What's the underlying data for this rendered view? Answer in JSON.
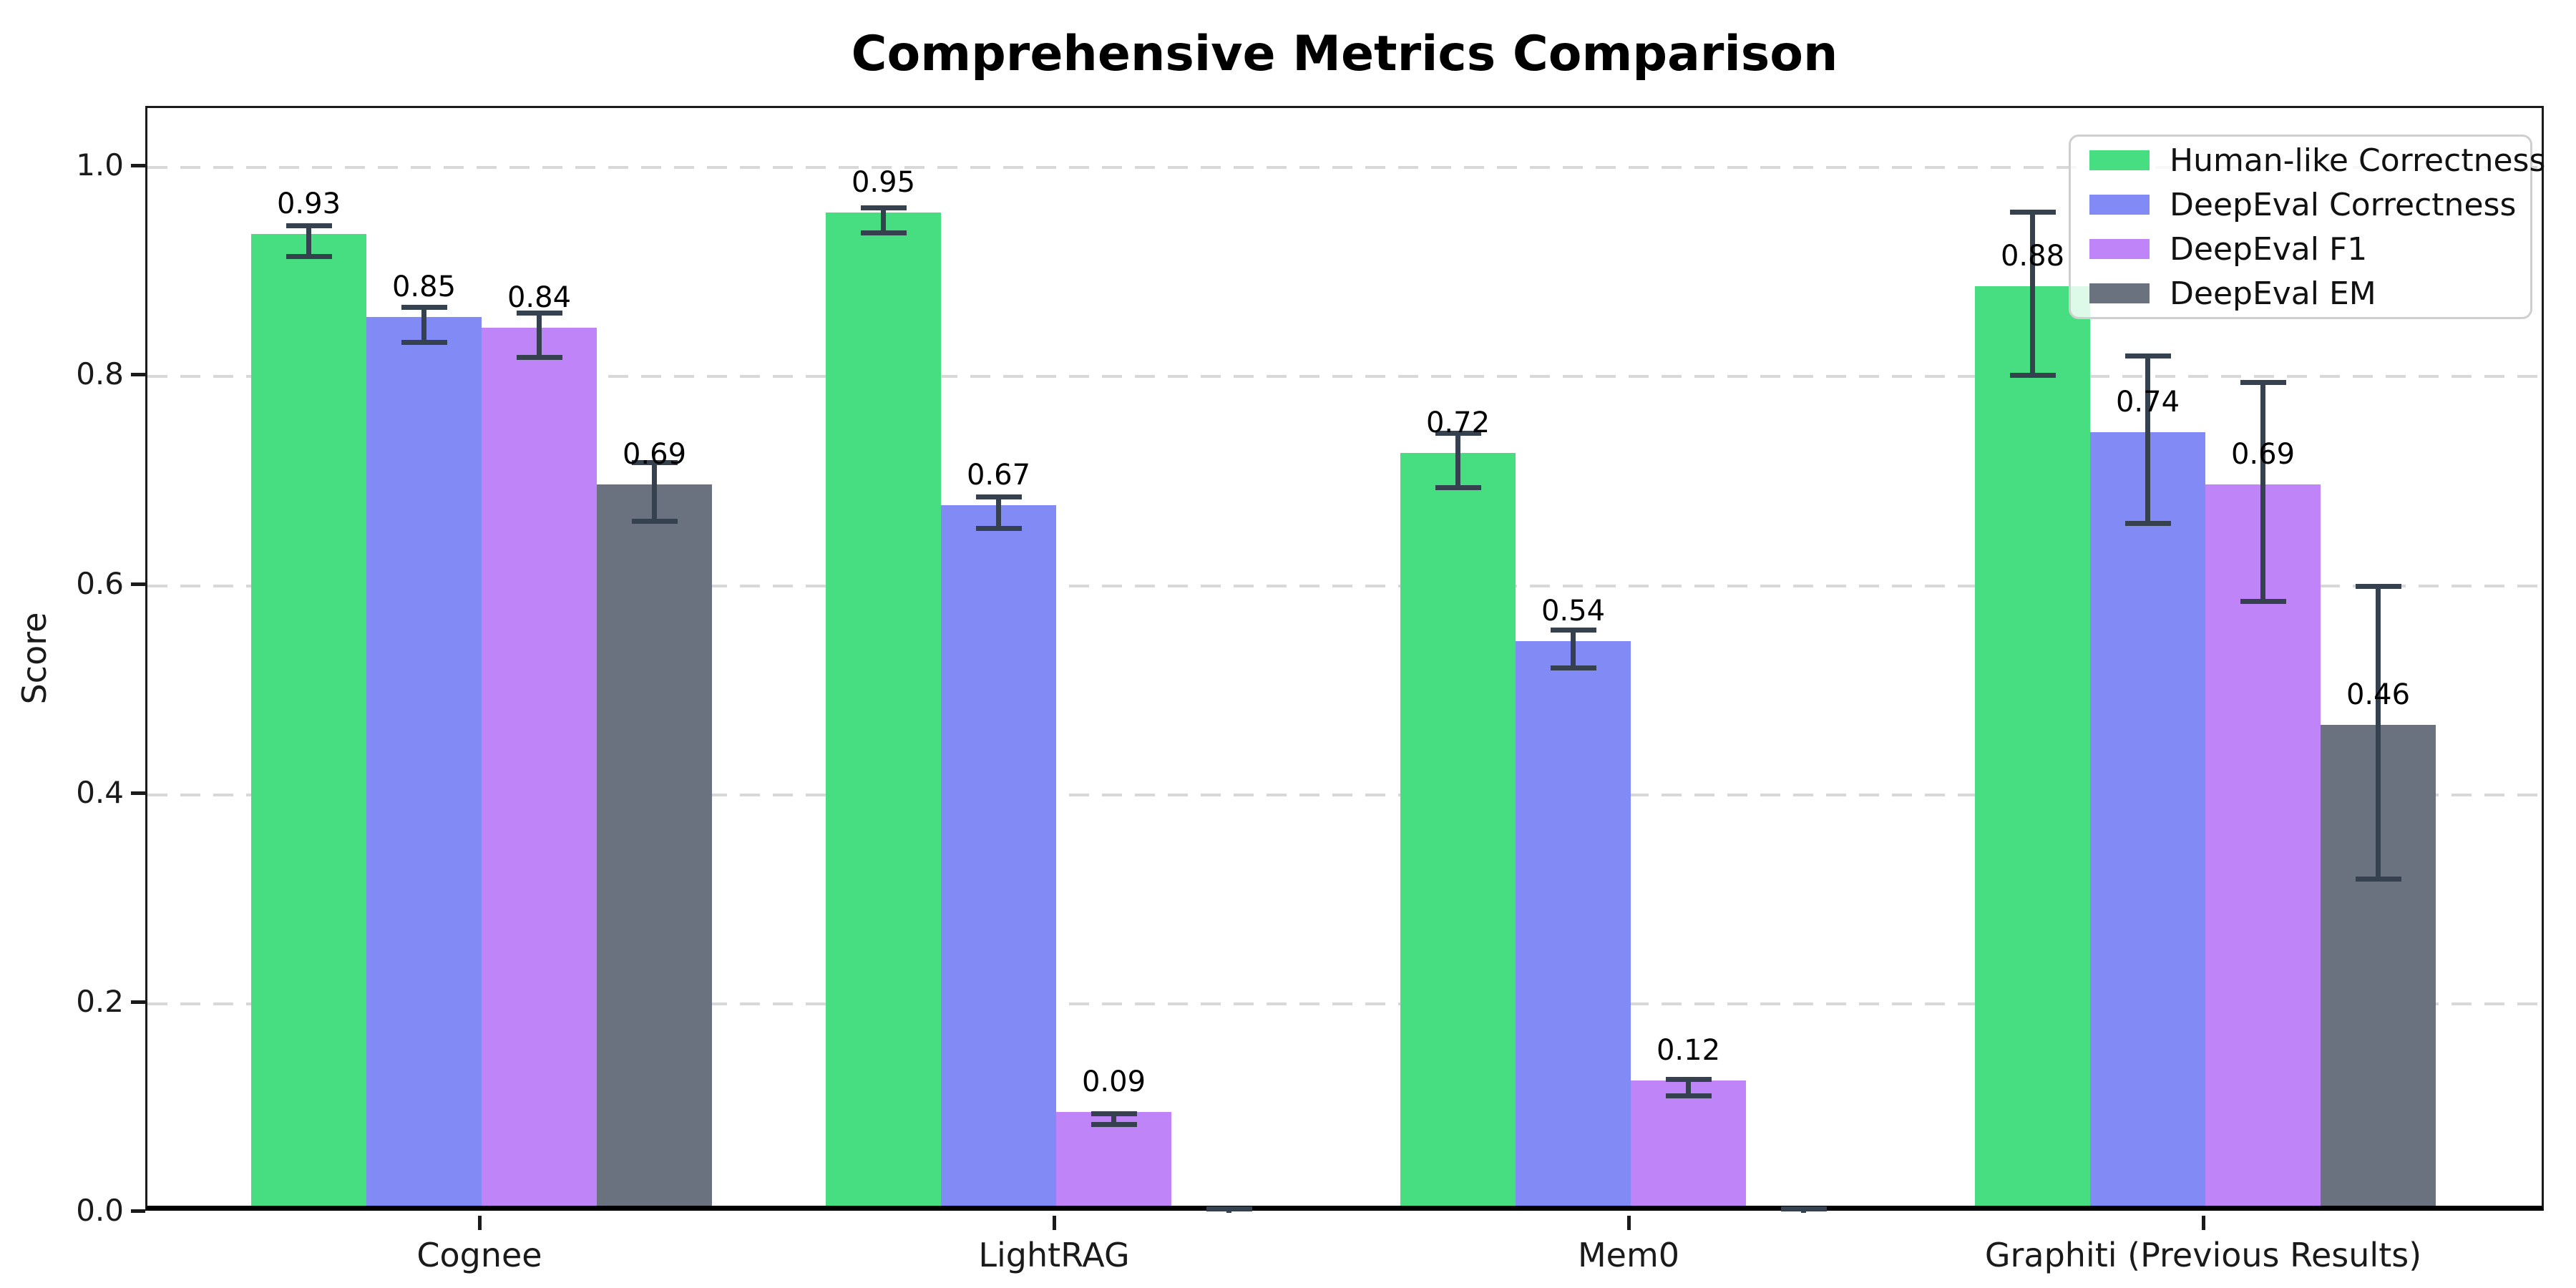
{
  "page": {
    "background": "#ffffff"
  },
  "chart_data": {
    "type": "bar",
    "title": "Comprehensive Metrics Comparison",
    "ylabel": "Score",
    "xlabel": "",
    "categories": [
      "Cognee",
      "LightRAG",
      "Mem0",
      "Graphiti (Previous Results)"
    ],
    "series": [
      {
        "name": "Human-like Correctness",
        "color": "#46de81",
        "values": [
          0.93,
          0.95,
          0.72,
          0.88
        ],
        "errors": [
          0.015,
          0.012,
          0.026,
          0.078
        ]
      },
      {
        "name": "DeepEval Correctness",
        "color": "#818af5",
        "values": [
          0.85,
          0.67,
          0.54,
          0.74
        ],
        "errors": [
          0.017,
          0.015,
          0.018,
          0.08
        ]
      },
      {
        "name": "DeepEval F1",
        "color": "#bf85f8",
        "values": [
          0.84,
          0.09,
          0.12,
          0.69
        ],
        "errors": [
          0.021,
          0.005,
          0.008,
          0.105
        ]
      },
      {
        "name": "DeepEval EM",
        "color": "#6a7280",
        "values": [
          0.69,
          0.0,
          0.0,
          0.46
        ],
        "errors": [
          0.028,
          0.004,
          0.004,
          0.14
        ]
      }
    ],
    "yticks": [
      "0.0",
      "0.2",
      "0.4",
      "0.6",
      "0.8",
      "1.0"
    ],
    "ytick_values": [
      0.0,
      0.2,
      0.4,
      0.6,
      0.8,
      1.0
    ],
    "ylim": [
      0,
      1.057
    ],
    "grid": "horizontal-dashed",
    "legend_position": "upper-right",
    "bar_label_format": "%.2f",
    "error_bar_color": "#364150"
  }
}
